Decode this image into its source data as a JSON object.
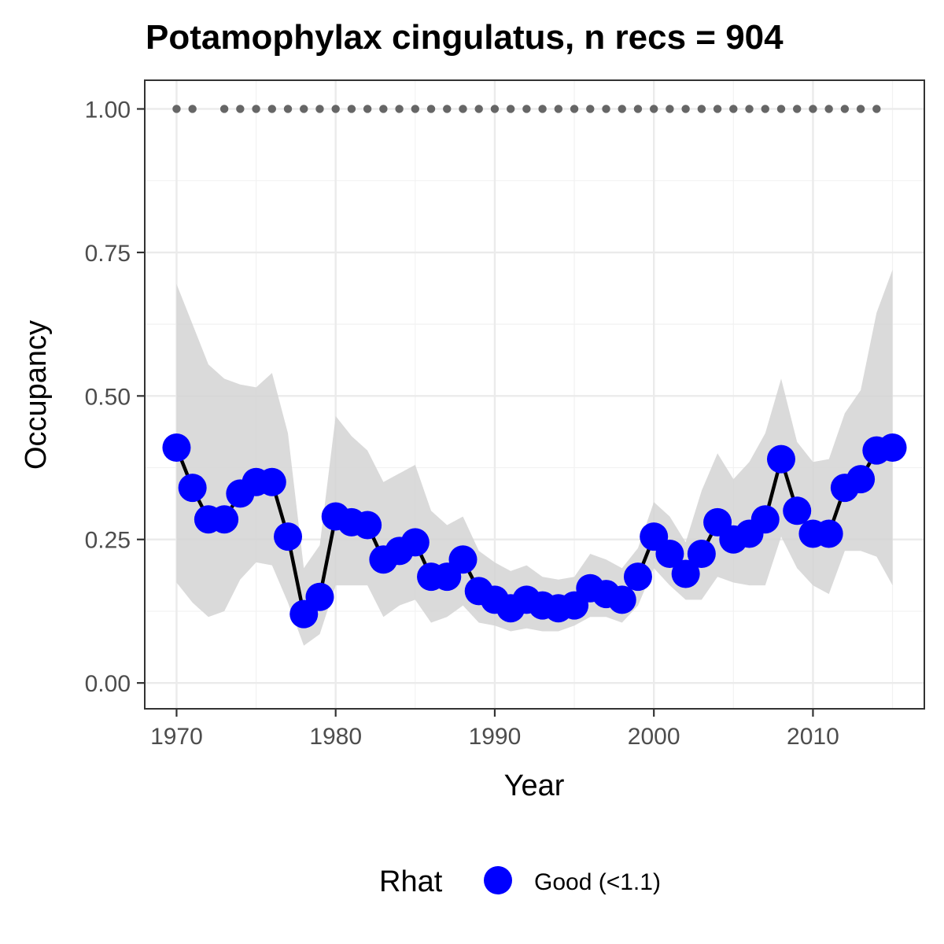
{
  "chart_data": {
    "type": "line",
    "title": "Potamophylax cingulatus, n recs = 904",
    "xlabel": "Year",
    "ylabel": "Occupancy",
    "xlim": [
      1968,
      2017
    ],
    "ylim": [
      -0.045,
      1.05
    ],
    "x_ticks": [
      1970,
      1980,
      1990,
      2000,
      2010
    ],
    "x_tick_labels": [
      "1970",
      "1980",
      "1990",
      "2000",
      "2010"
    ],
    "y_ticks": [
      0,
      0.25,
      0.5,
      0.75,
      1.0
    ],
    "y_tick_labels": [
      "0.00",
      "0.25",
      "0.50",
      "0.75",
      "1.00"
    ],
    "grid": true,
    "legend": {
      "title": "Rhat",
      "position": "bottom",
      "items": [
        {
          "label": "Good (<1.1)",
          "color": "#0000ff"
        }
      ]
    },
    "colors": {
      "points": "#0000ff",
      "line": "#000000",
      "band": "#d3d3d3",
      "record_dots": "#666666"
    },
    "series": [
      {
        "x": [
          1970,
          1971,
          1972,
          1973,
          1974,
          1975,
          1976,
          1977,
          1978,
          1979,
          1980,
          1981,
          1982,
          1983,
          1984,
          1985,
          1986,
          1987,
          1988,
          1989,
          1990,
          1991,
          1992,
          1993,
          1994,
          1995,
          1996,
          1997,
          1998,
          1999,
          2000,
          2001,
          2002,
          2003,
          2004,
          2005,
          2006,
          2007,
          2008,
          2009,
          2010,
          2011,
          2012,
          2013,
          2014,
          2015
        ],
        "values": [
          0.41,
          0.34,
          0.285,
          0.285,
          0.33,
          0.35,
          0.35,
          0.255,
          0.12,
          0.15,
          0.29,
          0.28,
          0.275,
          0.215,
          0.23,
          0.245,
          0.185,
          0.185,
          0.215,
          0.16,
          0.145,
          0.13,
          0.145,
          0.135,
          0.13,
          0.135,
          0.165,
          0.155,
          0.145,
          0.185,
          0.255,
          0.225,
          0.19,
          0.225,
          0.28,
          0.25,
          0.26,
          0.285,
          0.39,
          0.3,
          0.26,
          0.26,
          0.34,
          0.355,
          0.405,
          0.41
        ],
        "lower": [
          0.175,
          0.14,
          0.115,
          0.125,
          0.18,
          0.21,
          0.205,
          0.14,
          0.065,
          0.085,
          0.17,
          0.17,
          0.17,
          0.115,
          0.135,
          0.145,
          0.105,
          0.115,
          0.135,
          0.105,
          0.1,
          0.09,
          0.095,
          0.09,
          0.09,
          0.1,
          0.115,
          0.115,
          0.105,
          0.135,
          0.2,
          0.17,
          0.145,
          0.145,
          0.185,
          0.175,
          0.17,
          0.17,
          0.255,
          0.2,
          0.17,
          0.155,
          0.23,
          0.23,
          0.22,
          0.17
        ],
        "upper": [
          0.695,
          0.625,
          0.555,
          0.53,
          0.52,
          0.515,
          0.54,
          0.435,
          0.2,
          0.24,
          0.465,
          0.43,
          0.405,
          0.35,
          0.365,
          0.38,
          0.3,
          0.275,
          0.29,
          0.23,
          0.21,
          0.195,
          0.205,
          0.185,
          0.18,
          0.185,
          0.225,
          0.215,
          0.2,
          0.235,
          0.315,
          0.29,
          0.245,
          0.335,
          0.4,
          0.355,
          0.385,
          0.435,
          0.53,
          0.42,
          0.385,
          0.39,
          0.47,
          0.51,
          0.645,
          0.72
        ]
      },
      {
        "x": [
          1970,
          1971,
          1973,
          1974,
          1975,
          1976,
          1977,
          1978,
          1979,
          1980,
          1981,
          1982,
          1983,
          1984,
          1985,
          1986,
          1987,
          1988,
          1989,
          1990,
          1991,
          1992,
          1993,
          1994,
          1995,
          1996,
          1997,
          1998,
          1999,
          2000,
          2001,
          2002,
          2003,
          2004,
          2005,
          2006,
          2007,
          2008,
          2009,
          2010,
          2011,
          2012,
          2013,
          2014
        ],
        "values": [
          1,
          1,
          1,
          1,
          1,
          1,
          1,
          1,
          1,
          1,
          1,
          1,
          1,
          1,
          1,
          1,
          1,
          1,
          1,
          1,
          1,
          1,
          1,
          1,
          1,
          1,
          1,
          1,
          1,
          1,
          1,
          1,
          1,
          1,
          1,
          1,
          1,
          1,
          1,
          1,
          1,
          1,
          1,
          1
        ]
      }
    ]
  }
}
